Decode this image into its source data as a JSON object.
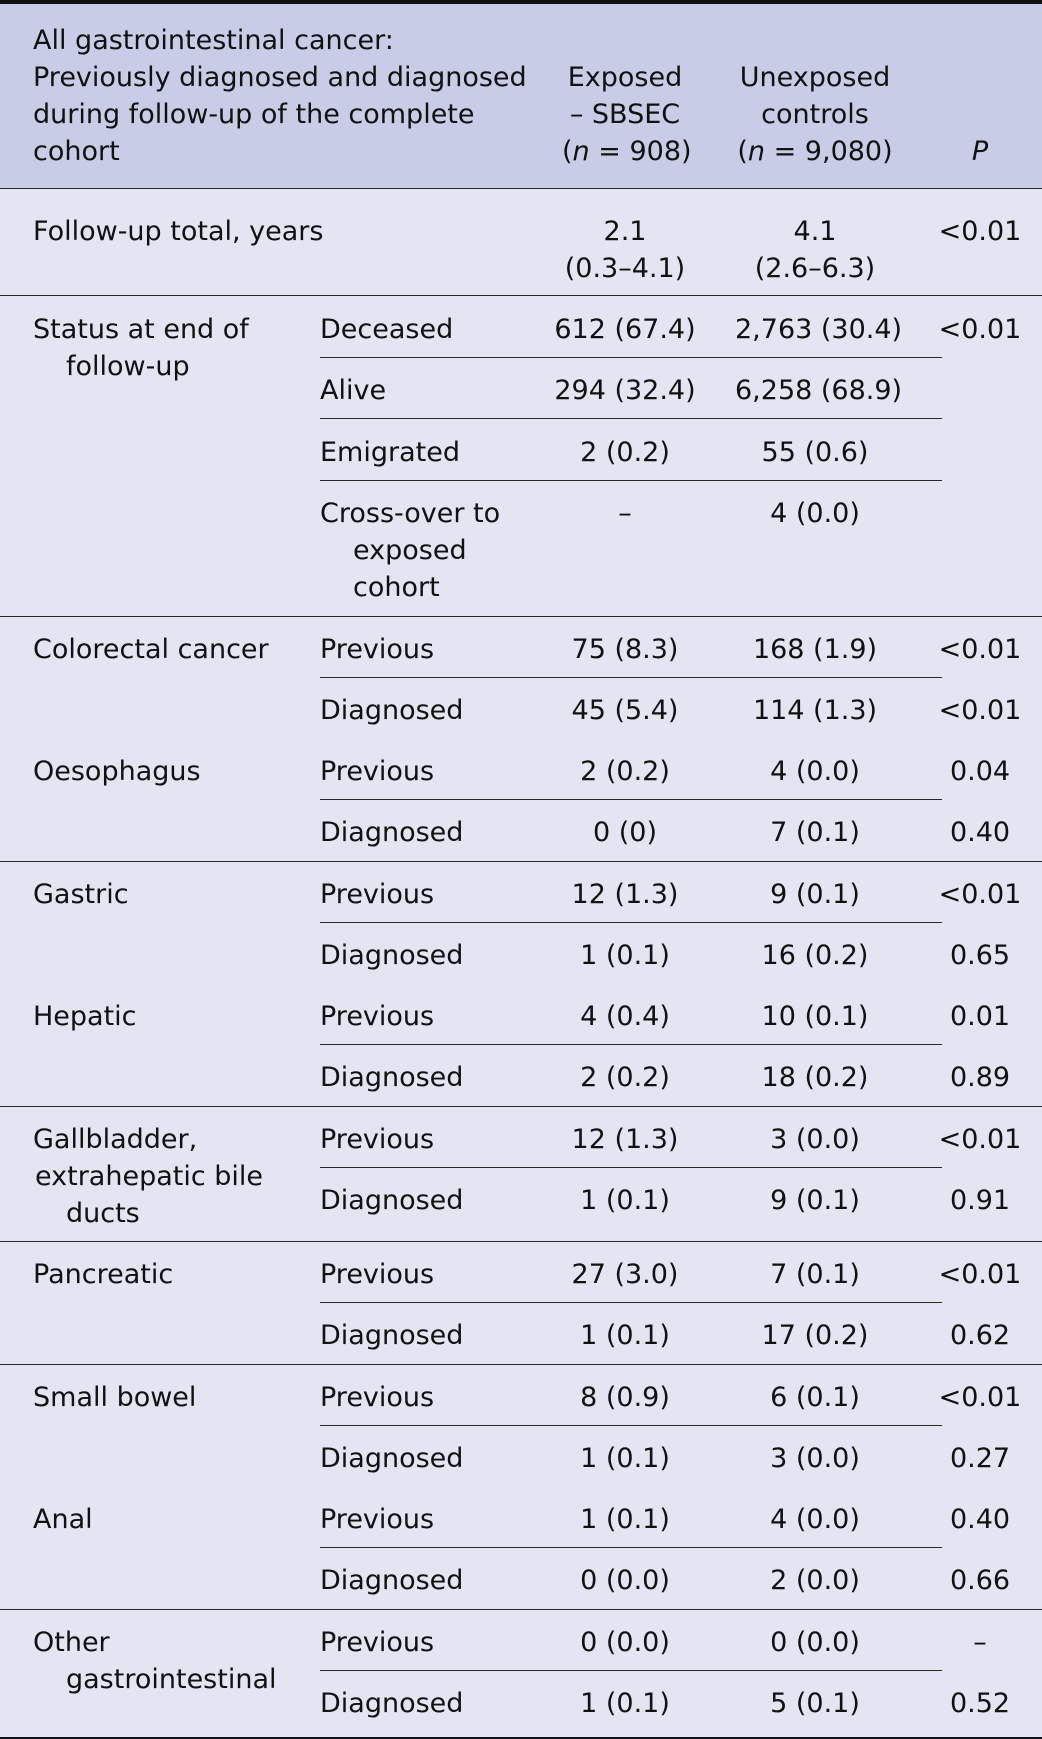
{
  "header": {
    "title_lines": [
      "All gastrointestinal cancer:",
      "Previously diagnosed and diagnosed",
      "during follow-up of the complete",
      "cohort"
    ],
    "exposed_lines": [
      "Exposed",
      "– SBSEC"
    ],
    "exposed_n_prefix": "(",
    "exposed_n_italic": "n",
    "exposed_n_rest": " = 908)",
    "unexposed_lines": [
      "Unexposed",
      "controls"
    ],
    "unexposed_n_prefix": "(",
    "unexposed_n_italic": "n",
    "unexposed_n_rest": " = 9,080)",
    "p_label": "P"
  },
  "followup": {
    "label": "Follow-up total, years",
    "exposed": [
      "2.1",
      "(0.3–4.1)"
    ],
    "unexposed": [
      "4.1",
      "(2.6–6.3)"
    ],
    "p": "<0.01"
  },
  "status": {
    "label_lines": [
      "Status at end of",
      "follow-up"
    ],
    "rows": [
      {
        "sub_lines": [
          "Deceased"
        ],
        "exposed": "612 (67.4)",
        "unexposed": "2,763 (30.4)",
        "p": "<0.01"
      },
      {
        "sub_lines": [
          "Alive"
        ],
        "exposed": "294 (32.4)",
        "unexposed": "6,258 (68.9)",
        "p": ""
      },
      {
        "sub_lines": [
          "Emigrated"
        ],
        "exposed": "2 (0.2)",
        "unexposed": "55 (0.6)",
        "p": ""
      },
      {
        "sub_lines": [
          "Cross-over to",
          "exposed",
          "cohort"
        ],
        "exposed": "–",
        "unexposed": "4 (0.0)",
        "p": ""
      }
    ]
  },
  "groups": [
    {
      "label_lines": [
        "Colorectal cancer"
      ],
      "rows": [
        {
          "sub": "Previous",
          "exposed": "75 (8.3)",
          "unexposed": "168 (1.9)",
          "p": "<0.01"
        },
        {
          "sub": "Diagnosed",
          "exposed": "45 (5.4)",
          "unexposed": "114 (1.3)",
          "p": "<0.01"
        }
      ]
    },
    {
      "label_lines": [
        "Oesophagus"
      ],
      "rows": [
        {
          "sub": "Previous",
          "exposed": "2 (0.2)",
          "unexposed": "4 (0.0)",
          "p": "0.04"
        },
        {
          "sub": "Diagnosed",
          "exposed": "0 (0)",
          "unexposed": "7 (0.1)",
          "p": "0.40"
        }
      ]
    },
    {
      "label_lines": [
        "Gastric"
      ],
      "rows": [
        {
          "sub": "Previous",
          "exposed": "12 (1.3)",
          "unexposed": "9 (0.1)",
          "p": "<0.01"
        },
        {
          "sub": "Diagnosed",
          "exposed": "1 (0.1)",
          "unexposed": "16 (0.2)",
          "p": "0.65"
        }
      ]
    },
    {
      "label_lines": [
        "Hepatic"
      ],
      "rows": [
        {
          "sub": "Previous",
          "exposed": "4 (0.4)",
          "unexposed": "10 (0.1)",
          "p": "0.01"
        },
        {
          "sub": "Diagnosed",
          "exposed": "2 (0.2)",
          "unexposed": "18 (0.2)",
          "p": "0.89"
        }
      ]
    },
    {
      "label_lines": [
        "Gallbladder,",
        "extrahepatic bile",
        "ducts"
      ],
      "rows": [
        {
          "sub": "Previous",
          "exposed": "12 (1.3)",
          "unexposed": "3 (0.0)",
          "p": "<0.01"
        },
        {
          "sub": "Diagnosed",
          "exposed": "1 (0.1)",
          "unexposed": "9 (0.1)",
          "p": "0.91"
        }
      ]
    },
    {
      "label_lines": [
        "Pancreatic"
      ],
      "rows": [
        {
          "sub": "Previous",
          "exposed": "27 (3.0)",
          "unexposed": "7 (0.1)",
          "p": "<0.01"
        },
        {
          "sub": "Diagnosed",
          "exposed": "1 (0.1)",
          "unexposed": "17 (0.2)",
          "p": "0.62"
        }
      ]
    },
    {
      "label_lines": [
        "Small bowel"
      ],
      "rows": [
        {
          "sub": "Previous",
          "exposed": "8 (0.9)",
          "unexposed": "6 (0.1)",
          "p": "<0.01"
        },
        {
          "sub": "Diagnosed",
          "exposed": "1 (0.1)",
          "unexposed": "3 (0.0)",
          "p": "0.27"
        }
      ]
    },
    {
      "label_lines": [
        "Anal"
      ],
      "rows": [
        {
          "sub": "Previous",
          "exposed": "1 (0.1)",
          "unexposed": "4 (0.0)",
          "p": "0.40"
        },
        {
          "sub": "Diagnosed",
          "exposed": "0 (0.0)",
          "unexposed": "2 (0.0)",
          "p": "0.66"
        }
      ]
    },
    {
      "label_lines": [
        "Other",
        "gastrointestinal"
      ],
      "rows": [
        {
          "sub": "Previous",
          "exposed": "0 (0.0)",
          "unexposed": "0 (0.0)",
          "p": "–"
        },
        {
          "sub": "Diagnosed",
          "exposed": "1 (0.1)",
          "unexposed": "5 (0.1)",
          "p": "0.52"
        }
      ]
    }
  ]
}
